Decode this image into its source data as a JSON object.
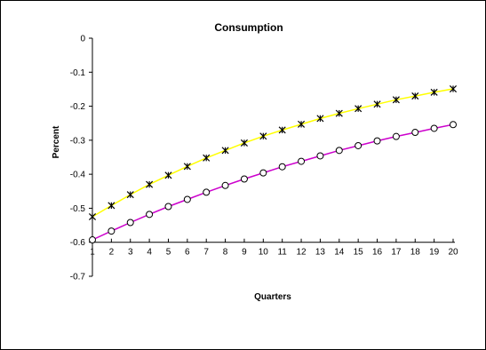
{
  "chart_data": {
    "type": "line",
    "title": "Consumption",
    "xlabel": "Quarters",
    "ylabel": "Percent",
    "ylim": [
      -0.7,
      0
    ],
    "yticks": [
      "0",
      "-0.1",
      "-0.2",
      "-0.3",
      "-0.4",
      "-0.5",
      "-0.6",
      "-0.7"
    ],
    "x": [
      1,
      2,
      3,
      4,
      5,
      6,
      7,
      8,
      9,
      10,
      11,
      12,
      13,
      14,
      15,
      16,
      17,
      18,
      19,
      20
    ],
    "grid": false,
    "legend": "none",
    "series": [
      {
        "marker": "asterisk",
        "line_color": "#ffff00",
        "values": [
          -0.525,
          -0.492,
          -0.46,
          -0.43,
          -0.403,
          -0.377,
          -0.352,
          -0.33,
          -0.308,
          -0.288,
          -0.27,
          -0.253,
          -0.236,
          -0.221,
          -0.207,
          -0.194,
          -0.181,
          -0.17,
          -0.159,
          -0.149
        ]
      },
      {
        "marker": "circle",
        "line_color": "#cc00cc",
        "values": [
          -0.593,
          -0.567,
          -0.542,
          -0.518,
          -0.495,
          -0.474,
          -0.453,
          -0.433,
          -0.414,
          -0.396,
          -0.378,
          -0.362,
          -0.346,
          -0.33,
          -0.316,
          -0.302,
          -0.289,
          -0.277,
          -0.265,
          -0.254
        ]
      }
    ]
  }
}
